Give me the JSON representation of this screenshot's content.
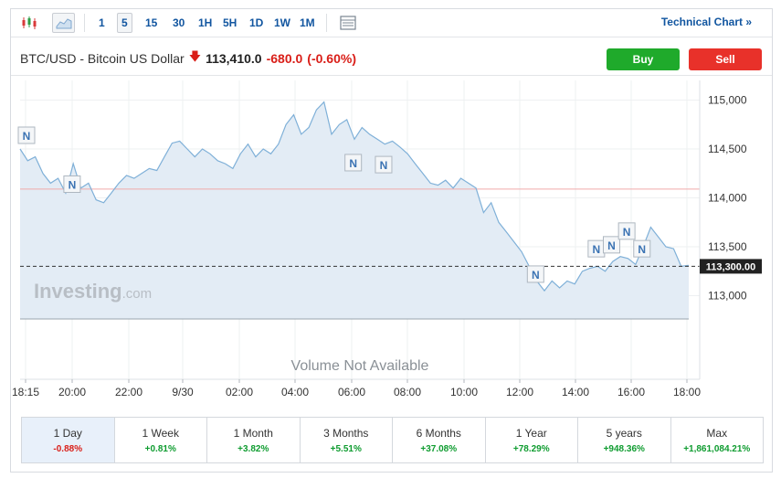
{
  "toolbar": {
    "timeframes": [
      "1",
      "5",
      "15",
      "30",
      "1H",
      "5H",
      "1D",
      "1W",
      "1M"
    ],
    "active_timeframe": "5",
    "technical_chart_label": "Technical Chart »"
  },
  "quote": {
    "name": "BTC/USD - Bitcoin US Dollar",
    "price": "113,410.0",
    "change": "-680.0",
    "change_pct": "(-0.60%)",
    "direction_icon": "arrow-down-icon"
  },
  "trade": {
    "buy_label": "Buy",
    "sell_label": "Sell"
  },
  "watermark": {
    "brand": "Investing",
    "suffix": ".com"
  },
  "volume_label": "Volume Not Available",
  "current_price_label": "113,300.00",
  "news_marker_label": "N",
  "colors": {
    "line": "#7fb0d8",
    "area": "#e3ecf5",
    "prev_close": "#f0aaaa",
    "buy": "#1faa2b",
    "sell": "#e8312a",
    "negative": "#d91e18",
    "positive": "#0f9c30"
  },
  "chart_data": {
    "type": "area",
    "x_tick_labels": [
      "18:15",
      "20:00",
      "22:00",
      "9/30",
      "02:00",
      "04:00",
      "06:00",
      "08:00",
      "10:00",
      "12:00",
      "14:00",
      "16:00",
      "18:00"
    ],
    "y_tick_labels": [
      "115,000",
      "114,500",
      "114,000",
      "113,500",
      "113,000"
    ],
    "ylim": [
      112750,
      115250
    ],
    "previous_close": 114090,
    "current_price": 113300,
    "grid": true,
    "series": [
      {
        "values": [
          114500,
          114380,
          114420,
          114250,
          114150,
          114200,
          114050,
          114350,
          114100,
          114150,
          113980,
          113950,
          114050,
          114150,
          114230,
          114200,
          114250,
          114300,
          114280,
          114420,
          114560,
          114580,
          114500,
          114420,
          114500,
          114450,
          114380,
          114350,
          114300,
          114450,
          114550,
          114420,
          114500,
          114450,
          114550,
          114750,
          114850,
          114650,
          114720,
          114900,
          114980,
          114650,
          114750,
          114800,
          114600,
          114720,
          114650,
          114600,
          114550,
          114580,
          114520,
          114450,
          114350,
          114250,
          114150,
          114130,
          114180,
          114100,
          114200,
          114150,
          114100,
          113850,
          113950,
          113750,
          113650,
          113550,
          113450,
          113300,
          113150,
          113050,
          113150,
          113080,
          113150,
          113120,
          113250,
          113280,
          113300,
          113250,
          113350,
          113400,
          113380,
          113320,
          113500,
          113700,
          113600,
          113500,
          113480,
          113300,
          113310
        ]
      }
    ],
    "news_markers": [
      {
        "time_index": 0,
        "value": 114500
      },
      {
        "time_index": 6,
        "value": 114000
      },
      {
        "time_index": 43,
        "value": 114220
      },
      {
        "time_index": 47,
        "value": 114200
      },
      {
        "time_index": 67,
        "value": 113080
      },
      {
        "time_index": 75,
        "value": 113340
      },
      {
        "time_index": 77,
        "value": 113380
      },
      {
        "time_index": 79,
        "value": 113520
      },
      {
        "time_index": 81,
        "value": 113340
      }
    ]
  },
  "periods": [
    {
      "label": "1 Day",
      "value": "-0.88%",
      "sign": "neg",
      "active": true
    },
    {
      "label": "1 Week",
      "value": "+0.81%",
      "sign": "pos",
      "active": false
    },
    {
      "label": "1 Month",
      "value": "+3.82%",
      "sign": "pos",
      "active": false
    },
    {
      "label": "3 Months",
      "value": "+5.51%",
      "sign": "pos",
      "active": false
    },
    {
      "label": "6 Months",
      "value": "+37.08%",
      "sign": "pos",
      "active": false
    },
    {
      "label": "1 Year",
      "value": "+78.29%",
      "sign": "pos",
      "active": false
    },
    {
      "label": "5 years",
      "value": "+948.36%",
      "sign": "pos",
      "active": false
    },
    {
      "label": "Max",
      "value": "+1,861,084.21%",
      "sign": "pos",
      "active": false
    }
  ]
}
